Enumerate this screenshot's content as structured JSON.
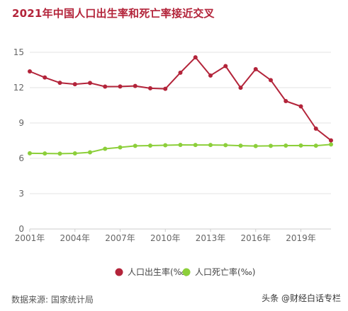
{
  "title": "2021年中国人口出生率和死亡率接近交叉",
  "source": "数据来源: 国家统计局",
  "watermark": "头条 @财经白话专栏",
  "chart_data": {
    "type": "line",
    "x": [
      2001,
      2002,
      2003,
      2004,
      2005,
      2006,
      2007,
      2008,
      2009,
      2010,
      2011,
      2012,
      2013,
      2014,
      2015,
      2016,
      2017,
      2018,
      2019,
      2020,
      2021
    ],
    "xticks": [
      2001,
      2004,
      2007,
      2010,
      2013,
      2016,
      2019
    ],
    "xtick_labels": [
      "2001年",
      "2004年",
      "2007年",
      "2010年",
      "2013年",
      "2016年",
      "2019年"
    ],
    "yticks": [
      0,
      3,
      6,
      9,
      12,
      15
    ],
    "ylim": [
      0,
      15
    ],
    "xlim": [
      2001,
      2021
    ],
    "grid": "horizontal",
    "legend_position": "bottom",
    "series": [
      {
        "name": "人口出生率(‰)",
        "color": "#b3243a",
        "values": [
          13.38,
          12.86,
          12.41,
          12.29,
          12.4,
          12.09,
          12.1,
          12.14,
          11.95,
          11.9,
          13.27,
          14.57,
          13.03,
          13.83,
          11.99,
          13.57,
          12.64,
          10.86,
          10.41,
          8.52,
          7.52
        ]
      },
      {
        "name": "人口死亡率(‰)",
        "color": "#8ccf3a",
        "values": [
          6.43,
          6.41,
          6.4,
          6.42,
          6.51,
          6.81,
          6.93,
          7.06,
          7.08,
          7.11,
          7.14,
          7.13,
          7.13,
          7.12,
          7.07,
          7.04,
          7.06,
          7.08,
          7.09,
          7.07,
          7.18
        ]
      }
    ]
  }
}
